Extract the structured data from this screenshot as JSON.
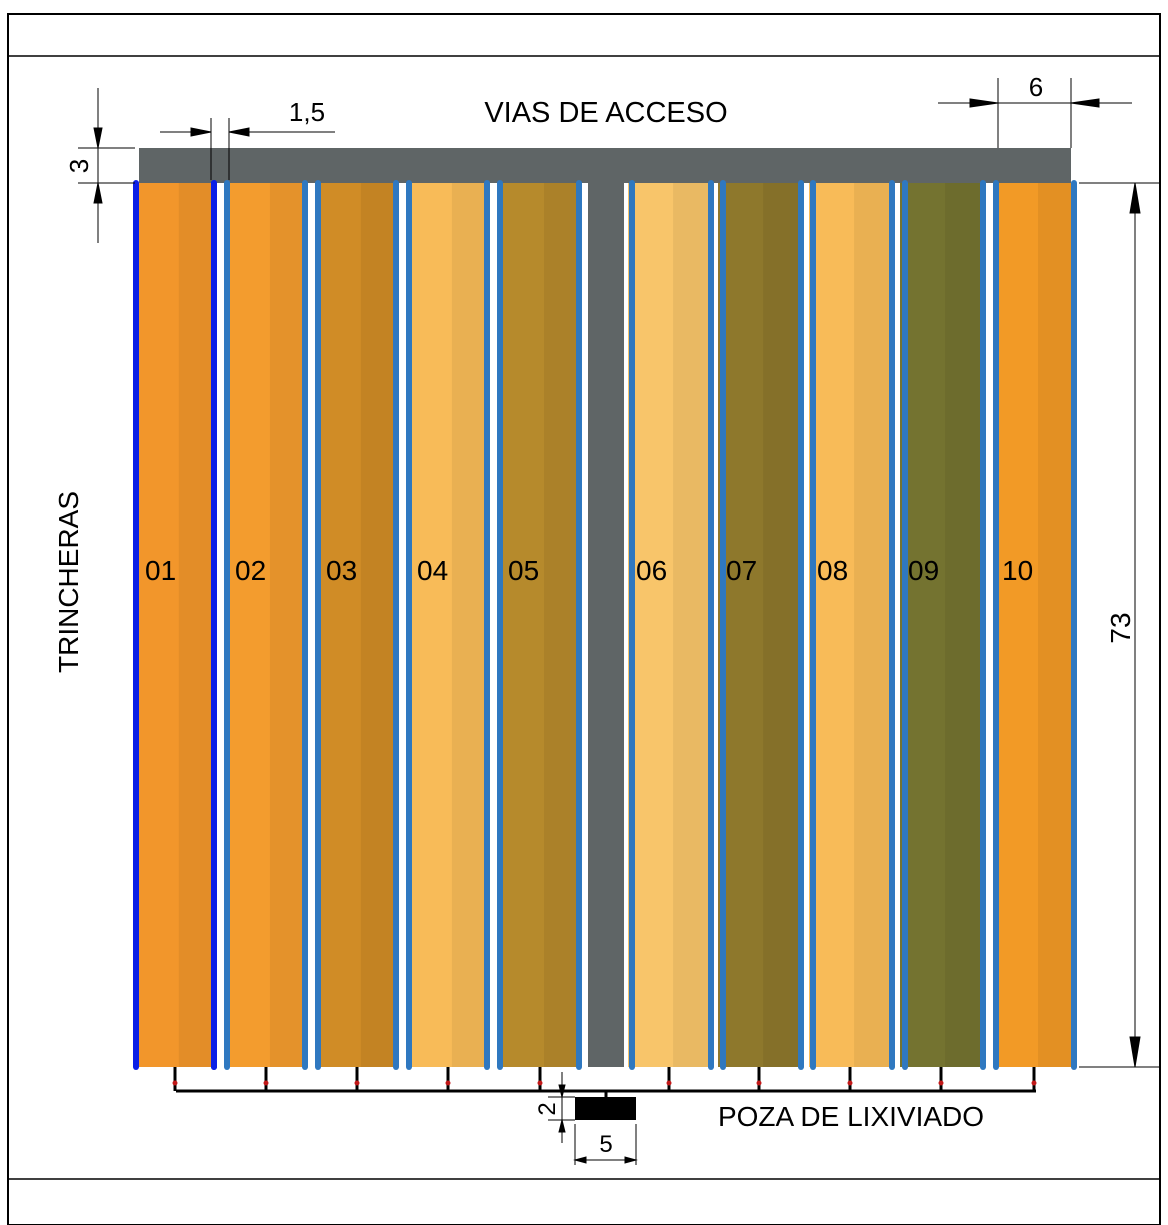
{
  "labels": {
    "top_road": "VIAS DE ACCESO",
    "left_side": "TRINCHERAS",
    "pond": "POZA DE LIXIVIADO"
  },
  "dimensions": {
    "road_width": "3",
    "gap": "1,5",
    "main_road": "6",
    "trench_length": "73",
    "pond_depth": "2",
    "pond_width": "5"
  },
  "trenches": [
    {
      "label": "01",
      "color": "#F2962B"
    },
    {
      "label": "02",
      "color": "#F39C2E"
    },
    {
      "label": "03",
      "color": "#D08C26"
    },
    {
      "label": "04",
      "color": "#F8BB58"
    },
    {
      "label": "05",
      "color": "#B68A2C"
    },
    {
      "label": "06",
      "color": "#F8C56A"
    },
    {
      "label": "07",
      "color": "#8E782C"
    },
    {
      "label": "08",
      "color": "#F8BB58"
    },
    {
      "label": "09",
      "color": "#747330"
    },
    {
      "label": "10",
      "color": "#F29A26"
    }
  ],
  "colors": {
    "road": "#5F6566",
    "pipe": "#2F78C0",
    "pipe_highlight": "#0B1FE6",
    "frame": "#000000"
  }
}
